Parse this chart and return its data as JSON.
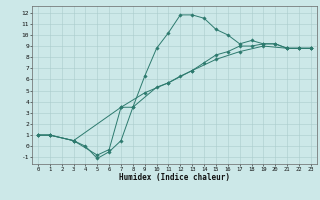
{
  "title": "",
  "xlabel": "Humidex (Indice chaleur)",
  "bg_color": "#cce8e8",
  "line_color": "#2d7a6e",
  "grid_color": "#aacccc",
  "xlim": [
    -0.5,
    23.5
  ],
  "ylim": [
    -1.6,
    12.6
  ],
  "xticks": [
    0,
    1,
    2,
    3,
    4,
    5,
    6,
    7,
    8,
    9,
    10,
    11,
    12,
    13,
    14,
    15,
    16,
    17,
    18,
    19,
    20,
    21,
    22,
    23
  ],
  "yticks": [
    -1,
    0,
    1,
    2,
    3,
    4,
    5,
    6,
    7,
    8,
    9,
    10,
    11,
    12
  ],
  "line1_x": [
    0,
    1,
    3,
    4,
    5,
    6,
    7,
    8,
    9,
    10,
    11,
    12,
    13,
    14,
    15,
    16,
    17,
    18,
    19,
    20,
    21,
    22,
    23
  ],
  "line1_y": [
    1,
    1,
    0.5,
    0,
    -1.1,
    -0.5,
    0.5,
    3.5,
    6.3,
    8.8,
    10.2,
    11.8,
    11.8,
    11.5,
    10.5,
    10.0,
    9.2,
    9.5,
    9.2,
    9.2,
    8.8,
    8.8,
    8.8
  ],
  "line2_x": [
    0,
    1,
    3,
    5,
    6,
    7,
    8,
    10,
    11,
    12,
    13,
    14,
    15,
    16,
    17,
    18,
    19,
    20,
    21,
    22,
    23
  ],
  "line2_y": [
    1,
    1,
    0.5,
    -0.8,
    -0.3,
    3.5,
    3.5,
    5.3,
    5.7,
    6.3,
    6.8,
    7.5,
    8.2,
    8.5,
    9.0,
    9.0,
    9.2,
    9.2,
    8.8,
    8.8,
    8.8
  ],
  "line3_x": [
    0,
    1,
    3,
    7,
    9,
    11,
    13,
    15,
    17,
    19,
    21,
    22,
    23
  ],
  "line3_y": [
    1,
    1,
    0.5,
    3.5,
    4.8,
    5.7,
    6.8,
    7.8,
    8.5,
    9.0,
    8.8,
    8.8,
    8.8
  ]
}
